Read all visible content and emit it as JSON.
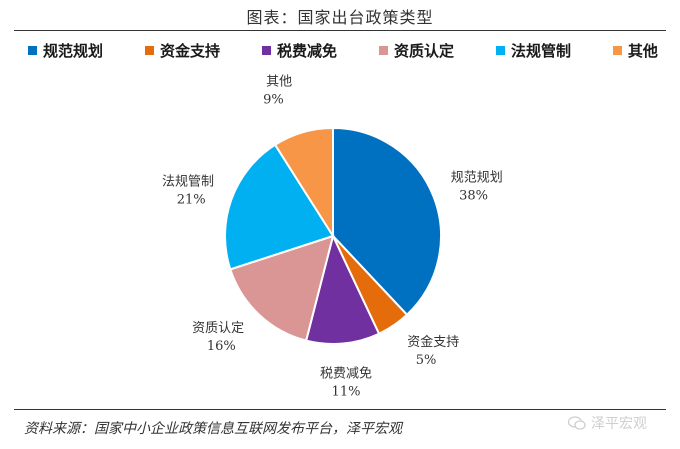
{
  "header": {
    "title": "图表：国家出台政策类型"
  },
  "chart_data": {
    "type": "pie",
    "title": "图表：国家出台政策类型",
    "legend_position": "top",
    "slices": [
      {
        "label": "规范规划",
        "value": 38,
        "value_label": "38%",
        "color": "#0070C0"
      },
      {
        "label": "资金支持",
        "value": 5,
        "value_label": "5%",
        "color": "#E46C0A"
      },
      {
        "label": "税费减免",
        "value": 11,
        "value_label": "11%",
        "color": "#7030A0"
      },
      {
        "label": "资质认定",
        "value": 16,
        "value_label": "16%",
        "color": "#D99694"
      },
      {
        "label": "法规管制",
        "value": 21,
        "value_label": "21%",
        "color": "#00B0F0"
      },
      {
        "label": "其他",
        "value": 9,
        "value_label": "9%",
        "color": "#F79646"
      }
    ]
  },
  "footer": {
    "source": "资料来源：国家中小企业政策信息互联网发布平台，泽平宏观",
    "watermark": "泽平宏观"
  }
}
